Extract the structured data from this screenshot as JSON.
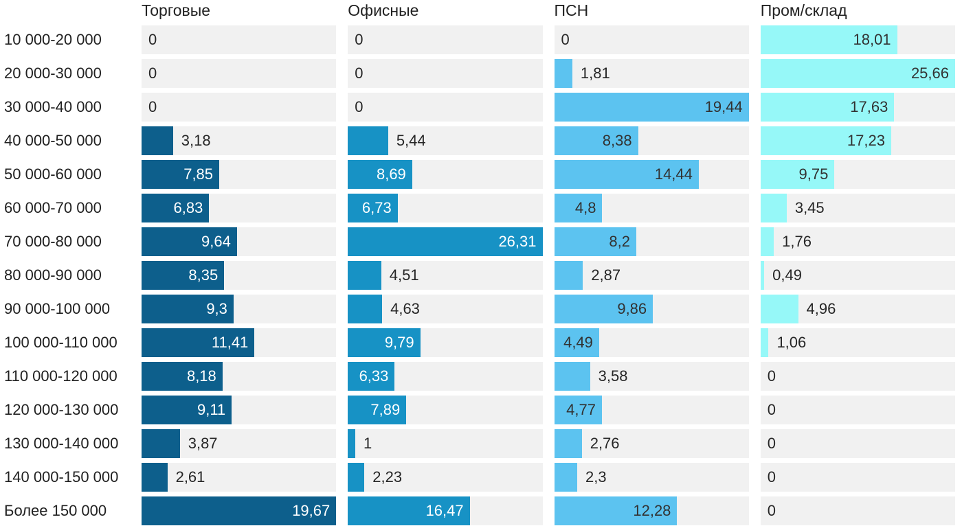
{
  "chart_data": {
    "type": "bar",
    "orientation": "horizontal",
    "title": "",
    "xlabel": "",
    "ylabel": "",
    "value_format": "decimal-comma",
    "scaling": "each column scaled independently; bar width = value / column max",
    "grid": false,
    "legend_position": "column headers on top",
    "track_color": "#f1f1f1",
    "background_color": "#ffffff",
    "text_color": "#212121",
    "categories": [
      "10 000-20 000",
      "20 000-30 000",
      "30 000-40 000",
      "40 000-50 000",
      "50 000-60 000",
      "60 000-70 000",
      "70 000-80 000",
      "80 000-90 000",
      "90 000-100 000",
      "100 000-110 000",
      "110 000-120 000",
      "120 000-130 000",
      "130 000-140 000",
      "140 000-150 000",
      "Более 150 000"
    ],
    "series": [
      {
        "name": "Торговые",
        "color": "#0d5f8c",
        "inside_label_color": "#ffffff",
        "values": [
          0,
          0,
          0,
          3.18,
          7.85,
          6.83,
          9.64,
          8.35,
          9.3,
          11.41,
          8.18,
          9.11,
          3.87,
          2.61,
          19.67
        ],
        "labels": [
          "0",
          "0",
          "0",
          "3,18",
          "7,85",
          "6,83",
          "9,64",
          "8,35",
          "9,3",
          "11,41",
          "8,18",
          "9,11",
          "3,87",
          "2,61",
          "19,67"
        ]
      },
      {
        "name": "Офисные",
        "color": "#1792c5",
        "inside_label_color": "#ffffff",
        "values": [
          0,
          0,
          0,
          5.44,
          8.69,
          6.73,
          26.31,
          4.51,
          4.63,
          9.79,
          6.33,
          7.89,
          1,
          2.23,
          16.47
        ],
        "labels": [
          "0",
          "0",
          "0",
          "5,44",
          "8,69",
          "6,73",
          "26,31",
          "4,51",
          "4,63",
          "9,79",
          "6,33",
          "7,89",
          "1",
          "2,23",
          "16,47"
        ]
      },
      {
        "name": "ПСН",
        "color": "#5cc3f0",
        "inside_label_color": "#323232",
        "values": [
          0,
          1.81,
          19.44,
          8.38,
          14.44,
          4.8,
          8.2,
          2.87,
          9.86,
          4.49,
          3.58,
          4.77,
          2.76,
          2.3,
          12.28
        ],
        "labels": [
          "0",
          "1,81",
          "19,44",
          "8,38",
          "14,44",
          "4,8",
          "8,2",
          "2,87",
          "9,86",
          "4,49",
          "3,58",
          "4,77",
          "2,76",
          "2,3",
          "12,28"
        ]
      },
      {
        "name": "Пром/склад",
        "color": "#96f8f8",
        "inside_label_color": "#323232",
        "values": [
          18.01,
          25.66,
          17.63,
          17.23,
          9.75,
          3.45,
          1.76,
          0.49,
          4.96,
          1.06,
          0,
          0,
          0,
          0,
          0
        ],
        "labels": [
          "18,01",
          "25,66",
          "17,63",
          "17,23",
          "9,75",
          "3,45",
          "1,76",
          "0,49",
          "4,96",
          "1,06",
          "0",
          "0",
          "0",
          "0",
          "0"
        ]
      }
    ]
  }
}
